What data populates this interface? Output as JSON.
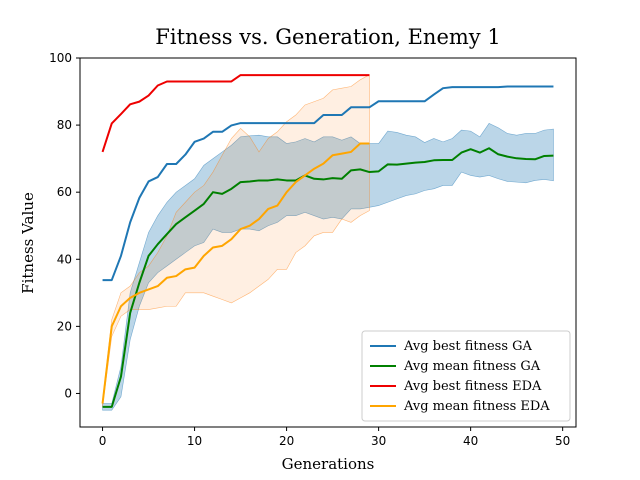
{
  "chart_data": {
    "type": "line",
    "title": "Fitness vs. Generation, Enemy 1",
    "xlabel": "Generations",
    "ylabel": "Fitness Value",
    "xlim": [
      -2.45,
      51.45
    ],
    "ylim": [
      -10,
      100
    ],
    "xticks": [
      0,
      10,
      20,
      30,
      40,
      50
    ],
    "yticks": [
      0,
      20,
      40,
      60,
      80,
      100
    ],
    "grid": false,
    "legend_position": "bottom-right",
    "series": [
      {
        "name": "Avg best fitness GA",
        "color": "#1f77b4",
        "x": [
          0,
          1,
          2,
          3,
          4,
          5,
          6,
          7,
          8,
          9,
          10,
          11,
          12,
          13,
          14,
          15,
          16,
          17,
          18,
          19,
          20,
          21,
          22,
          23,
          24,
          25,
          26,
          27,
          28,
          29,
          30,
          31,
          32,
          33,
          34,
          35,
          36,
          37,
          38,
          39,
          40,
          41,
          42,
          43,
          44,
          45,
          46,
          47,
          48,
          49
        ],
        "y": [
          33.8,
          33.8,
          41,
          51,
          58.3,
          63.2,
          64.5,
          68.4,
          68.4,
          71.2,
          75,
          76,
          78,
          78,
          79.9,
          80.6,
          80.6,
          80.6,
          80.6,
          80.6,
          80.6,
          80.6,
          80.6,
          80.6,
          83,
          83,
          83,
          85.3,
          85.3,
          85.3,
          87.1,
          87.1,
          87.1,
          87.1,
          87.1,
          87.1,
          89.1,
          91,
          91.3,
          91.3,
          91.3,
          91.3,
          91.3,
          91.3,
          91.5,
          91.5,
          91.5,
          91.5,
          91.5,
          91.5
        ]
      },
      {
        "name": "Avg mean fitness GA",
        "color": "#008000",
        "x": [
          0,
          1,
          2,
          3,
          4,
          5,
          6,
          7,
          8,
          9,
          10,
          11,
          12,
          13,
          14,
          15,
          16,
          17,
          18,
          19,
          20,
          21,
          22,
          23,
          24,
          25,
          26,
          27,
          28,
          29,
          30,
          31,
          32,
          33,
          34,
          35,
          36,
          37,
          38,
          39,
          40,
          41,
          42,
          43,
          44,
          45,
          46,
          47,
          48,
          49
        ],
        "y": [
          -4,
          -4,
          5,
          24,
          33,
          41,
          44.5,
          47.5,
          50.5,
          52.5,
          54.5,
          56.5,
          60,
          59.5,
          61,
          63,
          63.2,
          63.5,
          63.5,
          63.8,
          63.5,
          63.5,
          65,
          64,
          63.8,
          64.2,
          64,
          66.5,
          66.8,
          66,
          66.2,
          68.3,
          68.2,
          68.5,
          68.8,
          69,
          69.5,
          69.6,
          69.6,
          71.8,
          72.8,
          71.8,
          73.1,
          71.3,
          70.6,
          70.1,
          69.9,
          69.8,
          70.8,
          70.9
        ],
        "band_upper": [
          -3,
          -3,
          8,
          30,
          39,
          48,
          53,
          57,
          60,
          62,
          64,
          68,
          70,
          72,
          74,
          76.5,
          76.8,
          77,
          76.5,
          76.5,
          74.5,
          75,
          76,
          75,
          76.5,
          76.5,
          75.5,
          76.5,
          74.5,
          74.5,
          74.5,
          78.2,
          77.8,
          77,
          76.5,
          74.8,
          76,
          75,
          76,
          78.5,
          78.2,
          76.5,
          80.5,
          79.2,
          77.5,
          77,
          77.5,
          77.5,
          78.5,
          78.8
        ],
        "band_lower": [
          -5,
          -5,
          -1,
          16,
          26,
          33,
          36,
          38,
          40,
          42,
          44,
          45,
          49,
          48,
          48,
          49,
          49,
          48.5,
          50,
          51,
          53,
          53,
          54,
          53,
          52,
          52.5,
          52,
          55,
          55,
          55.5,
          56,
          57,
          58,
          59,
          59.5,
          60.5,
          61,
          62,
          62,
          66,
          65,
          64.5,
          65,
          64,
          63.2,
          63,
          62.8,
          63.5,
          63.8,
          63.4
        ]
      },
      {
        "name": "Avg best fitness EDA",
        "color": "#ee0000",
        "x": [
          0,
          1,
          2,
          3,
          4,
          5,
          6,
          7,
          8,
          9,
          10,
          11,
          12,
          13,
          14,
          15,
          16,
          17,
          18,
          19,
          20,
          21,
          22,
          23,
          24,
          25,
          26,
          27,
          28,
          29
        ],
        "y": [
          72,
          80.5,
          83.3,
          86.2,
          87,
          88.8,
          91.8,
          93,
          93,
          93,
          93,
          93,
          93,
          93,
          93,
          94.9,
          94.9,
          94.9,
          94.9,
          94.9,
          94.9,
          94.9,
          94.9,
          94.9,
          94.9,
          94.9,
          94.9,
          94.9,
          94.9,
          94.9
        ]
      },
      {
        "name": "Avg mean fitness EDA",
        "color": "#ffa500",
        "x": [
          0,
          1,
          2,
          3,
          4,
          5,
          6,
          7,
          8,
          9,
          10,
          11,
          12,
          13,
          14,
          15,
          16,
          17,
          18,
          19,
          20,
          21,
          22,
          23,
          24,
          25,
          26,
          27,
          28,
          29
        ],
        "y": [
          -3,
          20,
          26,
          28.5,
          30,
          31,
          32,
          34.5,
          35,
          37,
          37.5,
          41,
          43.5,
          44,
          46,
          49,
          50,
          52,
          55,
          56,
          60,
          63,
          65,
          67,
          68.5,
          71,
          71.5,
          72,
          74.5,
          74.5
        ],
        "band_upper": [
          -2,
          22,
          30,
          32,
          36,
          38,
          42,
          47,
          54,
          57,
          60,
          62,
          66,
          71,
          76,
          79,
          76.5,
          72,
          76,
          78,
          81,
          83,
          86,
          87,
          88,
          90.5,
          91,
          91.5,
          93.5,
          95
        ],
        "band_lower": [
          -4,
          17,
          23,
          25,
          25,
          25,
          25.5,
          26,
          26,
          30,
          30,
          30,
          29,
          28,
          27,
          28.5,
          30,
          32,
          34,
          37,
          37,
          42,
          44,
          47,
          48,
          48,
          52,
          51,
          53,
          54.5
        ]
      }
    ]
  }
}
